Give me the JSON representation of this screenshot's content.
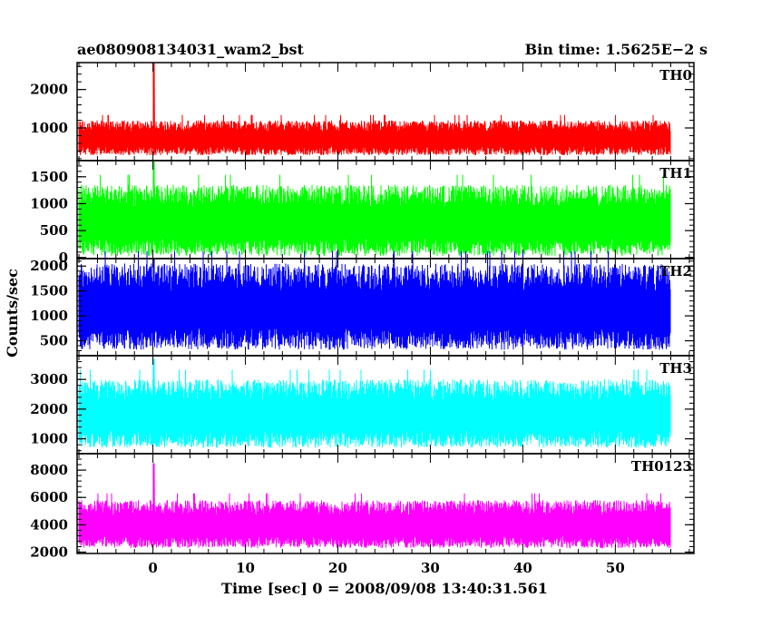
{
  "header": {
    "title": "ae080908134031_wam2_bst",
    "bin_time": "Bin time: 1.5625E−2 s"
  },
  "chart_data": {
    "type": "line",
    "xlabel": "Time [sec] 0 = 2008/09/08 13:40:31.561",
    "ylabel": "Counts/sec",
    "xlim": [
      -8.2,
      58.5
    ],
    "x_ticks": [
      0,
      10,
      20,
      30,
      40,
      50
    ],
    "x_data_range": [
      -8,
      56
    ],
    "bin_time_sec": 0.015625,
    "grid": false,
    "panels": [
      {
        "name": "TH0",
        "color": "#ff0000",
        "ylim": [
          150,
          2700
        ],
        "yticks": [
          1000,
          2000
        ],
        "band": [
          290,
          1200
        ],
        "mean": 650,
        "peak": {
          "x": 0.1,
          "y": 2700
        }
      },
      {
        "name": "TH1",
        "color": "#00ff00",
        "ylim": [
          -20,
          1800
        ],
        "yticks": [
          0,
          500,
          1000,
          1500
        ],
        "band": [
          30,
          1350
        ],
        "mean": 600,
        "peak": {
          "x": 0.1,
          "y": 1800
        }
      },
      {
        "name": "TH2",
        "color": "#0000ff",
        "ylim": [
          200,
          2150
        ],
        "yticks": [
          500,
          1000,
          1500,
          2000
        ],
        "band": [
          320,
          2050
        ],
        "mean": 1050,
        "peak": {
          "x": 0.1,
          "y": 2150
        }
      },
      {
        "name": "TH3",
        "color": "#00ffff",
        "ylim": [
          500,
          3800
        ],
        "yticks": [
          1000,
          2000,
          3000
        ],
        "band": [
          700,
          3000
        ],
        "mean": 1700,
        "peak": {
          "x": 0.1,
          "y": 3700
        }
      },
      {
        "name": "TH0123",
        "color": "#ff00ff",
        "ylim": [
          1900,
          9200
        ],
        "yticks": [
          2000,
          4000,
          6000,
          8000
        ],
        "band": [
          2300,
          5800
        ],
        "mean": 3800,
        "peak": {
          "x": 0.1,
          "y": 8500
        }
      }
    ]
  }
}
